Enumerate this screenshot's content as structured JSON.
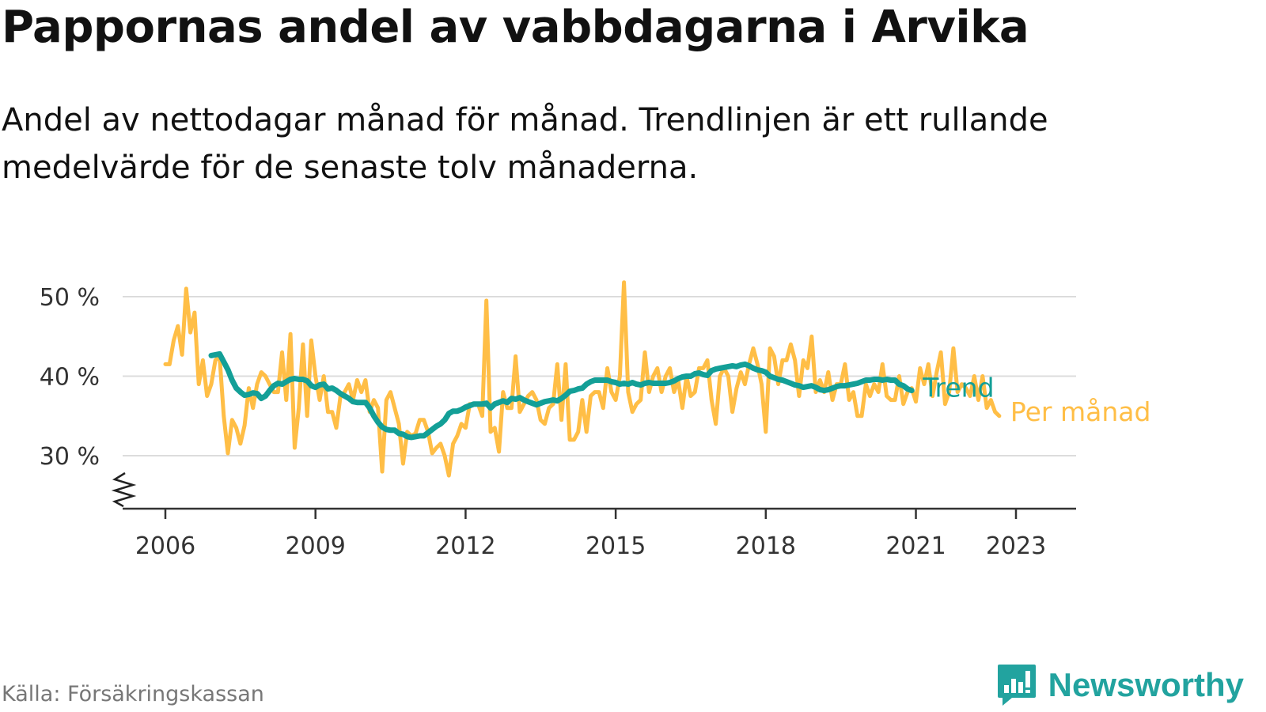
{
  "title": "Pappornas andel av vabbdagarna i Arvika",
  "subtitle": "Andel av nettodagar månad för månad. Trendlinjen är ett rullande medelvärde för de senaste tolv månaderna.",
  "source": "Källa: Försäkringskassan",
  "brand": {
    "name": "Newsworthy",
    "icon": "newsworthy-logo-icon",
    "color": "#22a39f"
  },
  "chart_data": {
    "type": "line",
    "x_unit": "year",
    "ylim": [
      24,
      53
    ],
    "y_ticks": [
      30,
      40,
      50
    ],
    "y_tick_labels": [
      "30 %",
      "40 %",
      "50 %"
    ],
    "x_ticks": [
      2006,
      2009,
      2012,
      2015,
      2018,
      2021,
      2023
    ],
    "x_tick_labels": [
      "2006",
      "2009",
      "2012",
      "2015",
      "2018",
      "2021",
      "2023"
    ],
    "grid": "horizontal",
    "legend": "direct labels at right end of lines",
    "series": [
      {
        "name": "Per månad",
        "color": "#ffbe46",
        "x_start": 2006.0,
        "step": 0.08333,
        "values": [
          41.5,
          41.5,
          44.5,
          46.3,
          42.7,
          51.0,
          45.5,
          48.0,
          39.0,
          42.0,
          37.5,
          39.0,
          42.0,
          42.5,
          35.0,
          30.3,
          34.5,
          33.5,
          31.5,
          33.8,
          38.5,
          36.0,
          39.0,
          40.5,
          40.0,
          39.0,
          38.0,
          38.0,
          43.0,
          37.0,
          45.3,
          31.0,
          36.0,
          44.0,
          35.0,
          44.5,
          40.0,
          37.0,
          40.0,
          35.5,
          35.5,
          33.5,
          37.5,
          38.0,
          39.0,
          37.0,
          39.5,
          38.0,
          39.5,
          35.5,
          37.0,
          36.0,
          28.0,
          37.0,
          38.0,
          36.0,
          34.0,
          29.0,
          33.0,
          32.5,
          32.8,
          34.5,
          34.5,
          33.0,
          30.3,
          31.0,
          31.5,
          30.0,
          27.5,
          31.5,
          32.5,
          34.0,
          33.5,
          36.5,
          36.5,
          36.5,
          35.0,
          49.5,
          33.0,
          33.5,
          30.5,
          38.0,
          36.0,
          36.0,
          42.5,
          35.5,
          36.5,
          37.5,
          38.0,
          37.0,
          34.5,
          34.0,
          36.0,
          36.5,
          41.5,
          34.5,
          41.5,
          32.0,
          32.0,
          33.0,
          37.0,
          33.0,
          37.5,
          38.0,
          38.0,
          36.0,
          41.0,
          38.0,
          37.0,
          40.0,
          51.8,
          38.0,
          35.5,
          36.5,
          37.0,
          43.0,
          38.0,
          40.0,
          41.0,
          38.0,
          40.0,
          41.0,
          38.0,
          39.5,
          36.0,
          40.0,
          37.5,
          38.0,
          41.0,
          41.0,
          42.0,
          37.0,
          34.0,
          40.0,
          41.0,
          40.0,
          35.5,
          38.5,
          40.5,
          39.0,
          41.5,
          43.5,
          41.5,
          39.0,
          33.0,
          43.5,
          42.5,
          39.0,
          42.0,
          42.0,
          44.0,
          42.0,
          37.5,
          42.0,
          41.0,
          45.0,
          38.0,
          39.5,
          38.0,
          40.5,
          37.0,
          39.0,
          39.0,
          41.5,
          37.0,
          38.0,
          35.0,
          35.0,
          39.0,
          37.5,
          39.0,
          38.0,
          41.5,
          37.5,
          37.0,
          37.0,
          40.0,
          36.5,
          38.0,
          38.5,
          36.8,
          41.0,
          39.0,
          41.5,
          37.5,
          40.5,
          43.0,
          36.5,
          38.0,
          43.5,
          38.0,
          39.0,
          38.5,
          37.5,
          40.0,
          37.0,
          40.0,
          36.0,
          37.0,
          35.5,
          35.0
        ]
      },
      {
        "name": "Trend",
        "color": "#139f97",
        "x_start": 2006.917,
        "step": 0.08333,
        "values": [
          42.6,
          42.7,
          42.8,
          41.8,
          40.8,
          39.5,
          38.5,
          38.0,
          37.6,
          37.7,
          37.9,
          37.8,
          37.2,
          37.5,
          38.2,
          38.8,
          39.1,
          39.0,
          39.3,
          39.6,
          39.7,
          39.6,
          39.6,
          39.4,
          38.8,
          38.6,
          38.9,
          39.0,
          38.4,
          38.5,
          38.2,
          37.8,
          37.5,
          37.2,
          36.8,
          36.7,
          36.7,
          36.7,
          36.0,
          35.0,
          34.2,
          33.6,
          33.3,
          33.2,
          33.2,
          32.8,
          32.7,
          32.4,
          32.3,
          32.4,
          32.5,
          32.5,
          32.9,
          33.3,
          33.7,
          34.0,
          34.5,
          35.3,
          35.6,
          35.6,
          35.8,
          36.1,
          36.3,
          36.5,
          36.5,
          36.5,
          36.6,
          36.0,
          36.5,
          36.7,
          36.9,
          36.7,
          37.2,
          37.1,
          37.3,
          37.0,
          36.8,
          36.6,
          36.4,
          36.6,
          36.8,
          36.9,
          37.0,
          36.9,
          37.2,
          37.6,
          38.1,
          38.2,
          38.4,
          38.5,
          39.0,
          39.3,
          39.5,
          39.5,
          39.5,
          39.5,
          39.3,
          39.2,
          39.0,
          39.1,
          39.0,
          39.2,
          39.0,
          38.9,
          39.1,
          39.2,
          39.1,
          39.1,
          39.1,
          39.1,
          39.2,
          39.4,
          39.7,
          39.9,
          40.0,
          40.0,
          40.3,
          40.4,
          40.2,
          40.1,
          40.7,
          40.9,
          41.0,
          41.1,
          41.2,
          41.3,
          41.2,
          41.4,
          41.5,
          41.3,
          41.0,
          40.8,
          40.7,
          40.5,
          40.0,
          39.8,
          39.6,
          39.5,
          39.3,
          39.1,
          38.9,
          38.8,
          38.6,
          38.7,
          38.8,
          38.6,
          38.3,
          38.2,
          38.3,
          38.5,
          38.7,
          38.8,
          38.8,
          38.9,
          39.0,
          39.1,
          39.3,
          39.5,
          39.5,
          39.6,
          39.6,
          39.5,
          39.6,
          39.5,
          39.5,
          39.0,
          38.8,
          38.4,
          38.2
        ]
      }
    ]
  }
}
